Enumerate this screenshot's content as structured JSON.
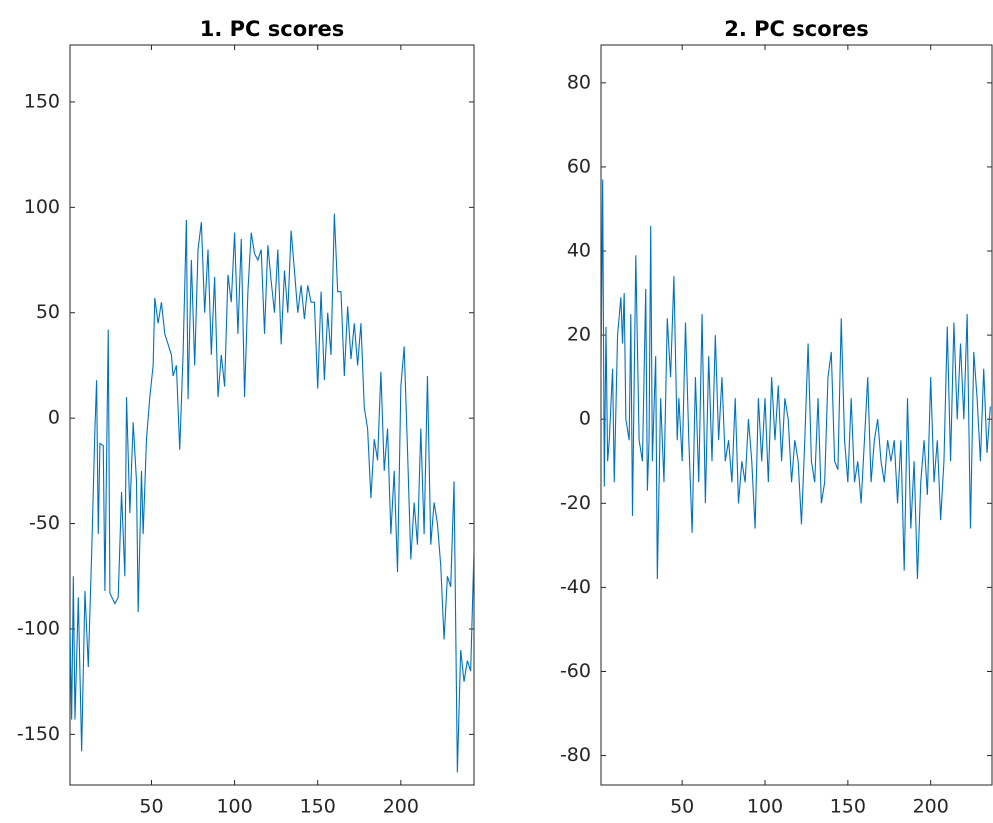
{
  "chart_data": [
    {
      "type": "line",
      "title": "1. PC scores",
      "color": "#0072bd",
      "xlim": [
        1,
        244
      ],
      "xticks": [
        50,
        100,
        150,
        200
      ],
      "ylim": [
        -174,
        177
      ],
      "yticks": [
        -150,
        -100,
        -50,
        0,
        50,
        100,
        150
      ],
      "x": [
        1,
        2,
        3,
        4,
        6,
        8,
        10,
        12,
        14,
        16,
        17,
        18,
        19,
        21,
        22,
        24,
        25,
        28,
        30,
        32,
        34,
        35,
        37,
        39,
        41,
        42,
        44,
        45,
        47,
        49,
        51,
        52,
        54,
        56,
        58,
        60,
        62,
        63,
        65,
        67,
        69,
        71,
        72,
        74,
        76,
        78,
        80,
        82,
        84,
        86,
        88,
        90,
        92,
        94,
        96,
        98,
        100,
        102,
        104,
        106,
        108,
        110,
        112,
        114,
        116,
        118,
        120,
        122,
        124,
        126,
        128,
        130,
        132,
        134,
        136,
        138,
        140,
        142,
        144,
        146,
        148,
        150,
        152,
        154,
        156,
        158,
        160,
        162,
        164,
        166,
        168,
        170,
        172,
        174,
        176,
        178,
        180,
        182,
        184,
        186,
        188,
        190,
        192,
        194,
        196,
        198,
        200,
        202,
        204,
        206,
        208,
        210,
        212,
        214,
        216,
        218,
        220,
        222,
        224,
        226,
        228,
        230,
        232,
        234,
        236,
        238,
        240,
        242,
        244
      ],
      "values": [
        -100,
        -143,
        -75,
        -143,
        -85,
        -158,
        -82,
        -118,
        -65,
        -5,
        18,
        -55,
        -12,
        -13,
        -82,
        42,
        -83,
        -88,
        -85,
        -35,
        -75,
        10,
        -45,
        -2,
        -30,
        -92,
        -25,
        -55,
        -10,
        10,
        25,
        57,
        45,
        55,
        40,
        35,
        30,
        20,
        25,
        -15,
        30,
        94,
        9,
        75,
        25,
        80,
        93,
        50,
        80,
        30,
        67,
        10,
        30,
        15,
        68,
        55,
        88,
        40,
        85,
        10,
        60,
        88,
        78,
        75,
        80,
        40,
        82,
        65,
        50,
        80,
        35,
        70,
        50,
        89,
        70,
        50,
        63,
        47,
        63,
        55,
        55,
        14,
        60,
        18,
        50,
        30,
        97,
        60,
        60,
        20,
        53,
        28,
        45,
        25,
        45,
        5,
        -5,
        -38,
        -10,
        -20,
        22,
        -25,
        -5,
        -55,
        -25,
        -73,
        15,
        34,
        -15,
        -67,
        -40,
        -60,
        -5,
        -55,
        20,
        -60,
        -40,
        -50,
        -70,
        -105,
        -75,
        -80,
        -30,
        -168,
        -110,
        -125,
        -115,
        -120,
        -62
      ]
    },
    {
      "type": "line",
      "title": "2. PC scores",
      "color": "#0072bd",
      "xlim": [
        1,
        237
      ],
      "xticks": [
        50,
        100,
        150,
        200
      ],
      "ylim": [
        -87,
        89
      ],
      "yticks": [
        -80,
        -60,
        -40,
        -20,
        0,
        20,
        40,
        60,
        80
      ],
      "x": [
        1,
        2,
        3,
        4,
        5,
        6,
        8,
        9,
        11,
        13,
        14,
        15,
        16,
        18,
        19,
        20,
        22,
        24,
        26,
        28,
        29,
        30,
        31,
        32,
        34,
        35,
        37,
        39,
        41,
        43,
        45,
        47,
        48,
        50,
        52,
        54,
        56,
        58,
        60,
        62,
        64,
        66,
        68,
        70,
        72,
        74,
        76,
        78,
        80,
        82,
        84,
        86,
        88,
        90,
        92,
        94,
        96,
        98,
        100,
        102,
        104,
        106,
        108,
        110,
        112,
        114,
        116,
        118,
        120,
        122,
        124,
        126,
        128,
        130,
        132,
        134,
        136,
        138,
        140,
        142,
        144,
        146,
        148,
        150,
        152,
        154,
        156,
        158,
        160,
        162,
        164,
        166,
        168,
        170,
        172,
        174,
        176,
        178,
        180,
        182,
        184,
        186,
        188,
        190,
        192,
        194,
        196,
        198,
        200,
        202,
        204,
        206,
        208,
        210,
        212,
        214,
        216,
        218,
        220,
        222,
        224,
        226,
        228,
        230,
        232,
        234,
        236
      ],
      "values": [
        10,
        57,
        -16,
        22,
        -10,
        -5,
        12,
        -15,
        20,
        29,
        18,
        30,
        0,
        -5,
        25,
        -23,
        39,
        -5,
        -10,
        31,
        -17,
        -5,
        46,
        -10,
        15,
        -38,
        5,
        -15,
        24,
        10,
        34,
        -5,
        5,
        -10,
        23,
        -5,
        -27,
        10,
        -15,
        25,
        -20,
        15,
        -10,
        20,
        -5,
        10,
        -10,
        -5,
        -15,
        5,
        -20,
        -10,
        -15,
        0,
        -10,
        -26,
        5,
        -10,
        5,
        -15,
        10,
        -5,
        8,
        -10,
        5,
        0,
        -15,
        -5,
        -10,
        -25,
        -5,
        18,
        -10,
        -15,
        5,
        -20,
        -15,
        10,
        16,
        -10,
        -12,
        24,
        -5,
        -15,
        5,
        -15,
        -10,
        -20,
        -5,
        10,
        -15,
        -5,
        0,
        -10,
        -15,
        -5,
        -10,
        -5,
        -20,
        -5,
        -36,
        5,
        -26,
        -10,
        -38,
        -15,
        -5,
        -18,
        10,
        -15,
        -5,
        -24,
        -10,
        22,
        -10,
        23,
        0,
        18,
        0,
        25,
        -26,
        16,
        5,
        -10,
        12,
        -8,
        3
      ]
    }
  ]
}
